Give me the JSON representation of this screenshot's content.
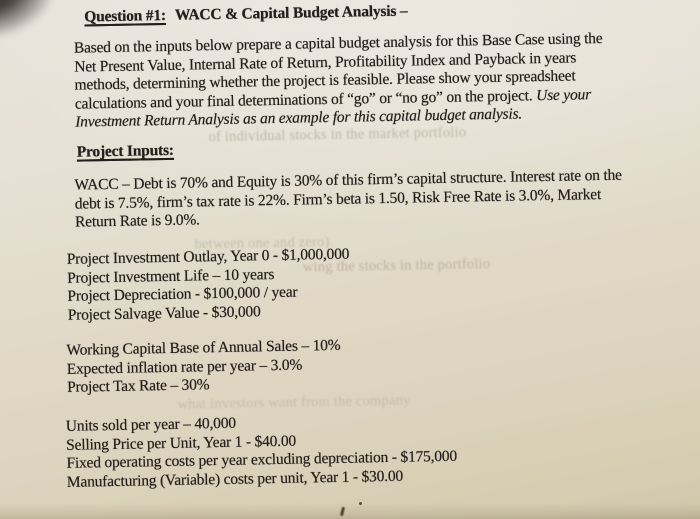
{
  "page": {
    "title": {
      "underlined": "Question #1:",
      "rest": "WACC & Capital Budget Analysis –"
    },
    "intro": {
      "lines": [
        [
          {
            "t": "Based on the inputs below prepare a capital budget analysis for this Base Case using the"
          }
        ],
        [
          {
            "t": "Net Present Value, Internal Rate of Return, Profitability Index and Payback in years"
          }
        ],
        [
          {
            "t": "methods, determining whether the project is feasible. Please show your spreadsheet"
          }
        ],
        [
          {
            "t": "calculations and your final determinations of “go” or “no go” on the project. "
          },
          {
            "t": "Use your",
            "i": true
          }
        ],
        [
          {
            "t": "Investment Return Analysis as an example for this capital budget analysis.",
            "i": true
          }
        ]
      ]
    },
    "section_heading": "Project Inputs:",
    "wacc": {
      "lines": [
        "WACC – Debt is 70% and Equity is 30% of this firm’s capital structure. Interest rate on the",
        "debt is 7.5%, firm’s tax rate is 22%. Firm’s beta is 1.50, Risk Free Rate is 3.0%, Market",
        "Return Rate is 9.0%."
      ]
    },
    "input_groups": [
      {
        "lines": [
          "Project Investment Outlay, Year 0 - $1,000,000",
          "Project Investment Life – 10 years",
          "Project Depreciation - $100,000 / year",
          "Project Salvage Value - $30,000"
        ]
      },
      {
        "lines": [
          "Working Capital Base of Annual Sales – 10%",
          "Expected inflation rate per year – 3.0%",
          "Project Tax Rate – 30%"
        ]
      },
      {
        "lines": [
          "Units sold per year – 40,000",
          "Selling Price per Unit, Year 1 - $40.00",
          "Fixed operating costs per year excluding depreciation - $175,000",
          "Manufacturing (Variable) costs per unit, Year 1 - $30.00"
        ]
      }
    ],
    "ghost_text": [
      {
        "text": "of individual stocks in the market portfolio"
      },
      {
        "text": "wing the stocks in the portfolio"
      },
      {
        "text": "between one and zero)"
      },
      {
        "text": "what investors want from the company"
      }
    ]
  }
}
